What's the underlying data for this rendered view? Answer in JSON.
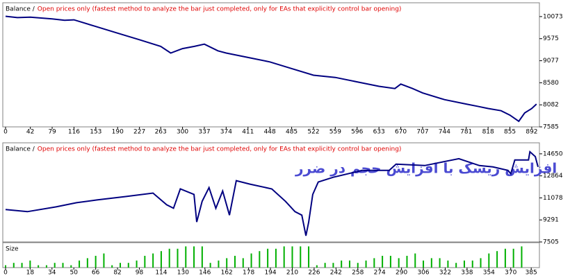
{
  "chart_data": [
    {
      "type": "line",
      "label": "Balance /",
      "description": "Open prices only (fastest method to analyze the bar just completed, only for EAs that explicitly control bar opening)",
      "x": [
        0,
        20,
        42,
        79,
        100,
        116,
        153,
        190,
        227,
        263,
        280,
        300,
        320,
        337,
        360,
        374,
        411,
        448,
        485,
        522,
        559,
        596,
        633,
        660,
        670,
        690,
        707,
        744,
        781,
        800,
        818,
        840,
        855,
        870,
        880,
        892,
        900
      ],
      "values": [
        10080,
        10050,
        10060,
        10020,
        9990,
        10000,
        9850,
        9700,
        9550,
        9400,
        9250,
        9350,
        9400,
        9450,
        9300,
        9250,
        9150,
        9050,
        8900,
        8750,
        8700,
        8600,
        8500,
        8450,
        8550,
        8450,
        8350,
        8200,
        8100,
        8050,
        8000,
        7950,
        7850,
        7710,
        7900,
        8000,
        8100
      ],
      "color": "#000080",
      "xlim": [
        0,
        905
      ],
      "ylim": [
        7585,
        10353
      ],
      "xticks": [
        0,
        42,
        79,
        116,
        153,
        190,
        227,
        263,
        300,
        337,
        374,
        411,
        448,
        485,
        522,
        559,
        596,
        633,
        670,
        707,
        744,
        781,
        818,
        855,
        892
      ],
      "yticks": [
        7585,
        8082,
        8580,
        9077,
        9575,
        10073
      ]
    },
    {
      "type": "line",
      "label": "Balance /",
      "description": "Open prices only (fastest method to analyze the bar just completed, only for EAs that explicitly control bar opening)",
      "annotation": "افزایش ریسک با افزایش حجم در ضرر",
      "x": [
        0,
        16,
        37,
        52,
        67,
        88,
        108,
        118,
        123,
        128,
        138,
        140,
        144,
        149,
        154,
        159,
        164,
        169,
        179,
        195,
        205,
        212,
        217,
        220,
        222,
        225,
        229,
        240,
        261,
        281,
        286,
        307,
        322,
        332,
        347,
        357,
        368,
        370,
        373,
        383,
        384,
        388,
        390
      ],
      "values": [
        10128,
        9960,
        10351,
        10686,
        10909,
        11188,
        11467,
        10518,
        10239,
        11802,
        11355,
        9123,
        10797,
        11913,
        10239,
        11634,
        9681,
        12471,
        12192,
        11802,
        10797,
        9960,
        9681,
        8007,
        9123,
        11355,
        12360,
        12750,
        13308,
        13308,
        13811,
        13699,
        14034,
        14257,
        13699,
        13587,
        13308,
        13029,
        14146,
        14146,
        14815,
        14424,
        13587
      ],
      "color": "#000080",
      "xlim": [
        0,
        391
      ],
      "ylim": [
        7505,
        15430
      ],
      "yticks": [
        7505,
        9291,
        11078,
        12864,
        14650
      ]
    },
    {
      "type": "bar",
      "label": "Size",
      "x": [
        0,
        6,
        12,
        18,
        24,
        30,
        36,
        42,
        48,
        54,
        60,
        66,
        72,
        78,
        84,
        90,
        96,
        102,
        108,
        114,
        120,
        126,
        132,
        138,
        144,
        150,
        156,
        162,
        168,
        174,
        180,
        186,
        192,
        198,
        204,
        210,
        216,
        222,
        228,
        234,
        240,
        246,
        252,
        258,
        264,
        270,
        276,
        282,
        288,
        294,
        300,
        306,
        312,
        318,
        324,
        330,
        336,
        342,
        348,
        354,
        360,
        366,
        372,
        378
      ],
      "values": [
        1,
        2,
        2,
        3,
        1,
        1,
        2,
        2,
        1,
        3,
        4,
        5,
        6,
        1,
        2,
        2,
        3,
        5,
        6,
        7,
        8,
        8,
        9,
        9,
        9,
        2,
        3,
        4,
        5,
        4,
        6,
        7,
        8,
        8,
        9,
        9,
        9,
        9,
        1,
        2,
        2,
        3,
        3,
        2,
        3,
        4,
        5,
        5,
        4,
        5,
        6,
        3,
        4,
        4,
        3,
        2,
        3,
        3,
        4,
        6,
        7,
        8,
        8,
        9
      ],
      "color": "#00b000",
      "xlim": [
        0,
        391
      ],
      "ylim": [
        0,
        10
      ],
      "xticks": [
        0,
        18,
        34,
        50,
        66,
        82,
        98,
        114,
        130,
        146,
        162,
        178,
        194,
        210,
        226,
        242,
        258,
        274,
        290,
        306,
        322,
        338,
        354,
        370,
        385
      ]
    }
  ]
}
